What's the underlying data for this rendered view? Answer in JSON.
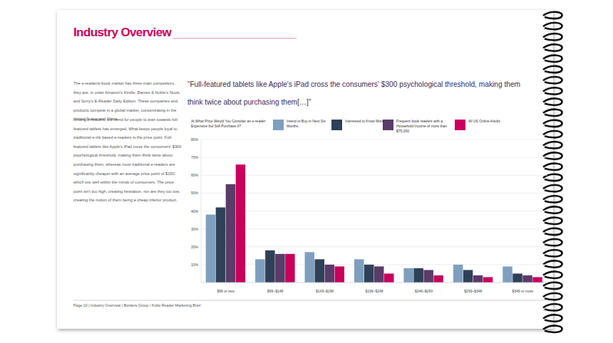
{
  "header": {
    "title": "Industry Overview"
  },
  "body": [
    "The e-reader/e-book market has three main competitors, they are, in order Amazon's Kindle, Barnes & Noble's Nook, and Sony's E-Reader Daily Edition. These companies and products compete in a global market, concentrating in the United States and China.",
    "Among e-readers, the trend for people to lean towards full-featured tablets has emerged. What keeps people loyal to traditional e-ink based e-readers is the price point. Full-featured tablets like Apple's iPad cross the consumers' $300 psychological threshold, making them think twice about purchasing them; whereas most traditional e-readers are significantly cheaper with an average price point of $150, which sits well within the minds of consumers. The price point isn't too high, creating hesitation, nor are they too low, creating the notion of them being a cheap inferior product."
  ],
  "quote": "“Full-featured tablets like Apple's iPad cross the consumers' $300 psychological threshold, making them think twice about purchasing them[…]”",
  "footer": "Page 10 | Industry Overview | Borders Group / Kobo Reader Marketing Brief",
  "chart_data": {
    "type": "bar",
    "title": "At What Price Would You Consider an e-reader Expensive but Still Purchase it?",
    "categories": [
      "$99 or less",
      "$99–$148",
      "$149–$198",
      "$199–$248",
      "$249–$299",
      "$299–$348",
      "$349 or more"
    ],
    "series": [
      {
        "name": "Intend to Buy in Next Six Months",
        "color": "#7f9fbf",
        "values": [
          38,
          13,
          17,
          13,
          8,
          10,
          9
        ]
      },
      {
        "name": "Interested to Know More",
        "color": "#2f4157",
        "values": [
          42,
          18,
          13,
          10,
          8,
          7,
          5
        ]
      },
      {
        "name": "Frequent book readers with a Household Income of more than $75,000",
        "color": "#5a3b69",
        "values": [
          55,
          16,
          10,
          9,
          7,
          4,
          4
        ]
      },
      {
        "name": "All US Online Adults",
        "color": "#c8005c",
        "values": [
          66,
          16,
          9,
          5,
          4,
          3,
          3
        ]
      }
    ],
    "ylim": [
      0,
      80
    ],
    "yticks": [
      {
        "value": 10,
        "label": "10%"
      },
      {
        "value": 20,
        "label": "20%"
      },
      {
        "value": 30,
        "label": "30%"
      },
      {
        "value": 40,
        "label": "40%"
      },
      {
        "value": 50,
        "label": "50%"
      },
      {
        "value": 60,
        "label": "60%"
      },
      {
        "value": 70,
        "label": "70%"
      },
      {
        "value": 80,
        "label": "80%"
      }
    ],
    "grid": true,
    "legend": "top"
  }
}
